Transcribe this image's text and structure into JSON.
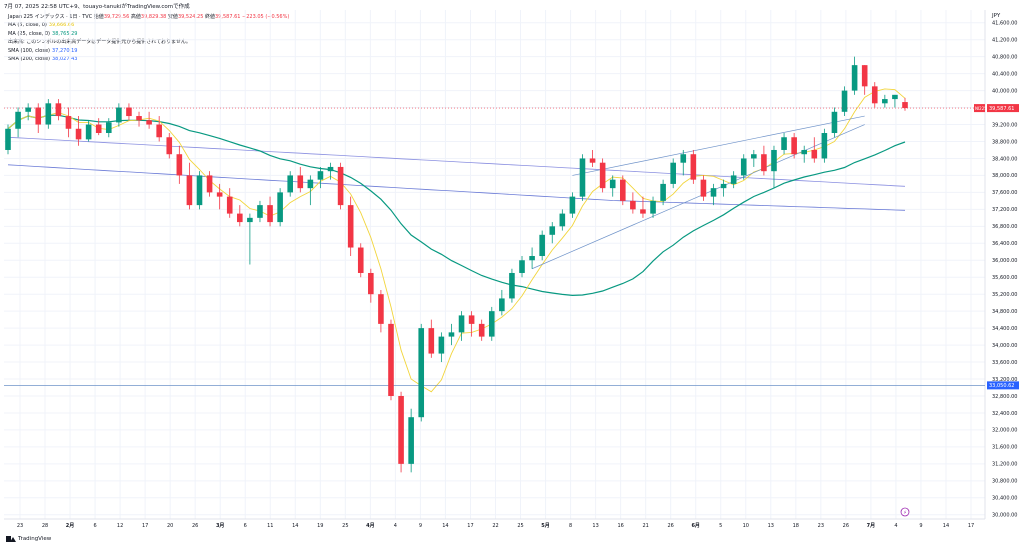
{
  "header": {
    "topline": "7月 07, 2025 22:58 UTC+9、touayo-tanukiがTradingView.comで作成",
    "symbol": "Japan 225 インデックス · 1日 · TVC",
    "open_label": "始値",
    "open": "39,729.56",
    "high_label": "高値",
    "high": "39,829.38",
    "low_label": "安値",
    "low": "39,524.25",
    "close_label": "終値",
    "close": "39,587.61",
    "change": "−223.05 (−0.56%)"
  },
  "legend": [
    {
      "label": "MA (5, close, 0)",
      "value": "39,666.66",
      "color": "#e8c400"
    },
    {
      "label": "MA (25, close, 0)",
      "value": "38,765.29",
      "color": "#089981"
    },
    {
      "label": "出来高: このシンボルの出来高データはデータ提供元から提供されておりません。",
      "value": "",
      "color": "#131722"
    },
    {
      "label": "SMA (100, close)",
      "value": "37,270.19",
      "color": "#2962ff"
    },
    {
      "label": "SMA (200, close)",
      "value": "38,027.43",
      "color": "#2962ff"
    }
  ],
  "currency": "JPY",
  "colors": {
    "up": "#089981",
    "down": "#f23645",
    "ma5": "#f2d53c",
    "ma25": "#089981",
    "sma100": "#6b7bd6",
    "sma200": "#8a8fe0",
    "hline": "#6f93c9"
  },
  "price_tags": {
    "last_symbol": "NI225",
    "last": "39,587.61",
    "hline": "33,050.62"
  },
  "footer": {
    "brand": "TradingView"
  },
  "event_marker": "⚡",
  "chart_data": {
    "type": "candlestick",
    "y_ticks": [
      30000,
      30400,
      30800,
      31200,
      31600,
      32000,
      32400,
      32800,
      33200,
      33600,
      34000,
      34400,
      34800,
      35200,
      35600,
      36000,
      36400,
      36800,
      37200,
      37600,
      38000,
      38400,
      38800,
      39200,
      39600,
      40000,
      40400,
      40800,
      41200,
      41600
    ],
    "y_tick_labels": [
      "30,000.00",
      "30,400.00",
      "30,800.00",
      "31,200.00",
      "31,600.00",
      "32,000.00",
      "32,400.00",
      "32,800.00",
      "33,200.00",
      "33,600.00",
      "34,000.00",
      "34,400.00",
      "34,800.00",
      "35,200.00",
      "35,600.00",
      "36,000.00",
      "36,400.00",
      "36,800.00",
      "37,200.00",
      "37,600.00",
      "38,000.00",
      "38,400.00",
      "38,800.00",
      "39,200.00",
      "39,600.00",
      "40,000.00",
      "40,400.00",
      "40,800.00",
      "41,200.00",
      "41,600.00"
    ],
    "ylim": [
      29900,
      41900
    ],
    "x_ticks": [
      "23",
      "28",
      "2月",
      "6",
      "12",
      "17",
      "20",
      "26",
      "3月",
      "6",
      "11",
      "14",
      "19",
      "25",
      "4月",
      "4",
      "9",
      "14",
      "17",
      "22",
      "25",
      "5月",
      "8",
      "13",
      "16",
      "21",
      "26",
      "6月",
      "5",
      "10",
      "13",
      "18",
      "23",
      "26",
      "7月",
      "4",
      "9",
      "14",
      "17"
    ],
    "candles": [
      [
        38600,
        39200,
        38500,
        39100
      ],
      [
        39100,
        39600,
        38900,
        39500
      ],
      [
        39500,
        39700,
        39300,
        39600
      ],
      [
        39600,
        39700,
        39000,
        39200
      ],
      [
        39200,
        39800,
        39100,
        39700
      ],
      [
        39700,
        39800,
        39300,
        39400
      ],
      [
        39400,
        39600,
        38900,
        39100
      ],
      [
        39100,
        39400,
        38700,
        38850
      ],
      [
        38850,
        39300,
        38800,
        39200
      ],
      [
        39200,
        39350,
        38950,
        39000
      ],
      [
        39000,
        39350,
        38900,
        39250
      ],
      [
        39250,
        39700,
        39150,
        39600
      ],
      [
        39600,
        39700,
        39300,
        39400
      ],
      [
        39400,
        39500,
        39150,
        39300
      ],
      [
        39300,
        39500,
        39100,
        39200
      ],
      [
        39200,
        39400,
        38800,
        38900
      ],
      [
        38900,
        39000,
        38400,
        38500
      ],
      [
        38500,
        38700,
        37800,
        38000
      ],
      [
        38000,
        38300,
        37200,
        37300
      ],
      [
        37300,
        38100,
        37200,
        38000
      ],
      [
        38000,
        38100,
        37500,
        37600
      ],
      [
        37600,
        37800,
        37200,
        37500
      ],
      [
        37500,
        37700,
        37000,
        37100
      ],
      [
        37100,
        37300,
        36800,
        36900
      ],
      [
        36900,
        37100,
        35900,
        37000
      ],
      [
        37000,
        37400,
        36900,
        37300
      ],
      [
        37300,
        37500,
        36800,
        36900
      ],
      [
        36900,
        37700,
        36800,
        37600
      ],
      [
        37600,
        38100,
        37500,
        38000
      ],
      [
        38000,
        38200,
        37600,
        37700
      ],
      [
        37700,
        38000,
        37300,
        37900
      ],
      [
        37900,
        38200,
        37700,
        38100
      ],
      [
        38100,
        38300,
        37900,
        38200
      ],
      [
        38200,
        38300,
        37200,
        37300
      ],
      [
        37300,
        37500,
        36100,
        36300
      ],
      [
        36300,
        36400,
        35600,
        35700
      ],
      [
        35700,
        35800,
        35000,
        35200
      ],
      [
        35200,
        35300,
        34300,
        34500
      ],
      [
        34500,
        34600,
        32700,
        32800
      ],
      [
        32800,
        32900,
        31000,
        31200
      ],
      [
        31200,
        32500,
        31000,
        32300
      ],
      [
        32300,
        34500,
        32200,
        34400
      ],
      [
        34400,
        34600,
        33700,
        33800
      ],
      [
        33800,
        34300,
        33600,
        34200
      ],
      [
        34200,
        34500,
        34000,
        34300
      ],
      [
        34300,
        34800,
        34100,
        34700
      ],
      [
        34700,
        34800,
        34200,
        34500
      ],
      [
        34500,
        34600,
        34100,
        34200
      ],
      [
        34200,
        34900,
        34100,
        34800
      ],
      [
        34800,
        35300,
        34700,
        35100
      ],
      [
        35100,
        35800,
        35000,
        35700
      ],
      [
        35700,
        36100,
        35600,
        36000
      ],
      [
        36000,
        36300,
        35800,
        36100
      ],
      [
        36100,
        36700,
        36000,
        36600
      ],
      [
        36600,
        36900,
        36400,
        36800
      ],
      [
        36800,
        37200,
        36700,
        37100
      ],
      [
        37100,
        37600,
        37000,
        37500
      ],
      [
        37500,
        38500,
        37400,
        38400
      ],
      [
        38400,
        38600,
        38200,
        38300
      ],
      [
        38300,
        38400,
        37600,
        37700
      ],
      [
        37700,
        38000,
        37500,
        37900
      ],
      [
        37900,
        38000,
        37300,
        37400
      ],
      [
        37400,
        37600,
        37100,
        37200
      ],
      [
        37200,
        37500,
        37000,
        37100
      ],
      [
        37100,
        37500,
        37000,
        37400
      ],
      [
        37400,
        37900,
        37300,
        37800
      ],
      [
        37800,
        38400,
        37700,
        38300
      ],
      [
        38300,
        38600,
        38000,
        38500
      ],
      [
        38500,
        38600,
        37800,
        37900
      ],
      [
        37900,
        38000,
        37400,
        37500
      ],
      [
        37500,
        37800,
        37300,
        37700
      ],
      [
        37700,
        37900,
        37500,
        37800
      ],
      [
        37800,
        38100,
        37700,
        38000
      ],
      [
        38000,
        38500,
        37900,
        38400
      ],
      [
        38400,
        38600,
        38200,
        38500
      ],
      [
        38500,
        38700,
        38000,
        38100
      ],
      [
        38100,
        38700,
        37700,
        38600
      ],
      [
        38600,
        39000,
        38500,
        38900
      ],
      [
        38900,
        39000,
        38400,
        38500
      ],
      [
        38500,
        38700,
        38300,
        38600
      ],
      [
        38600,
        38900,
        38300,
        38400
      ],
      [
        38400,
        39100,
        38300,
        39000
      ],
      [
        39000,
        39600,
        38900,
        39500
      ],
      [
        39500,
        40100,
        39400,
        40000
      ],
      [
        40000,
        40800,
        39900,
        40600
      ],
      [
        40600,
        40600,
        39900,
        40100
      ],
      [
        40100,
        40200,
        39600,
        39700
      ],
      [
        39700,
        39900,
        39600,
        39800
      ],
      [
        39800,
        39900,
        39600,
        39900
      ],
      [
        39729.56,
        39829.38,
        39524.25,
        39587.61
      ]
    ]
  }
}
